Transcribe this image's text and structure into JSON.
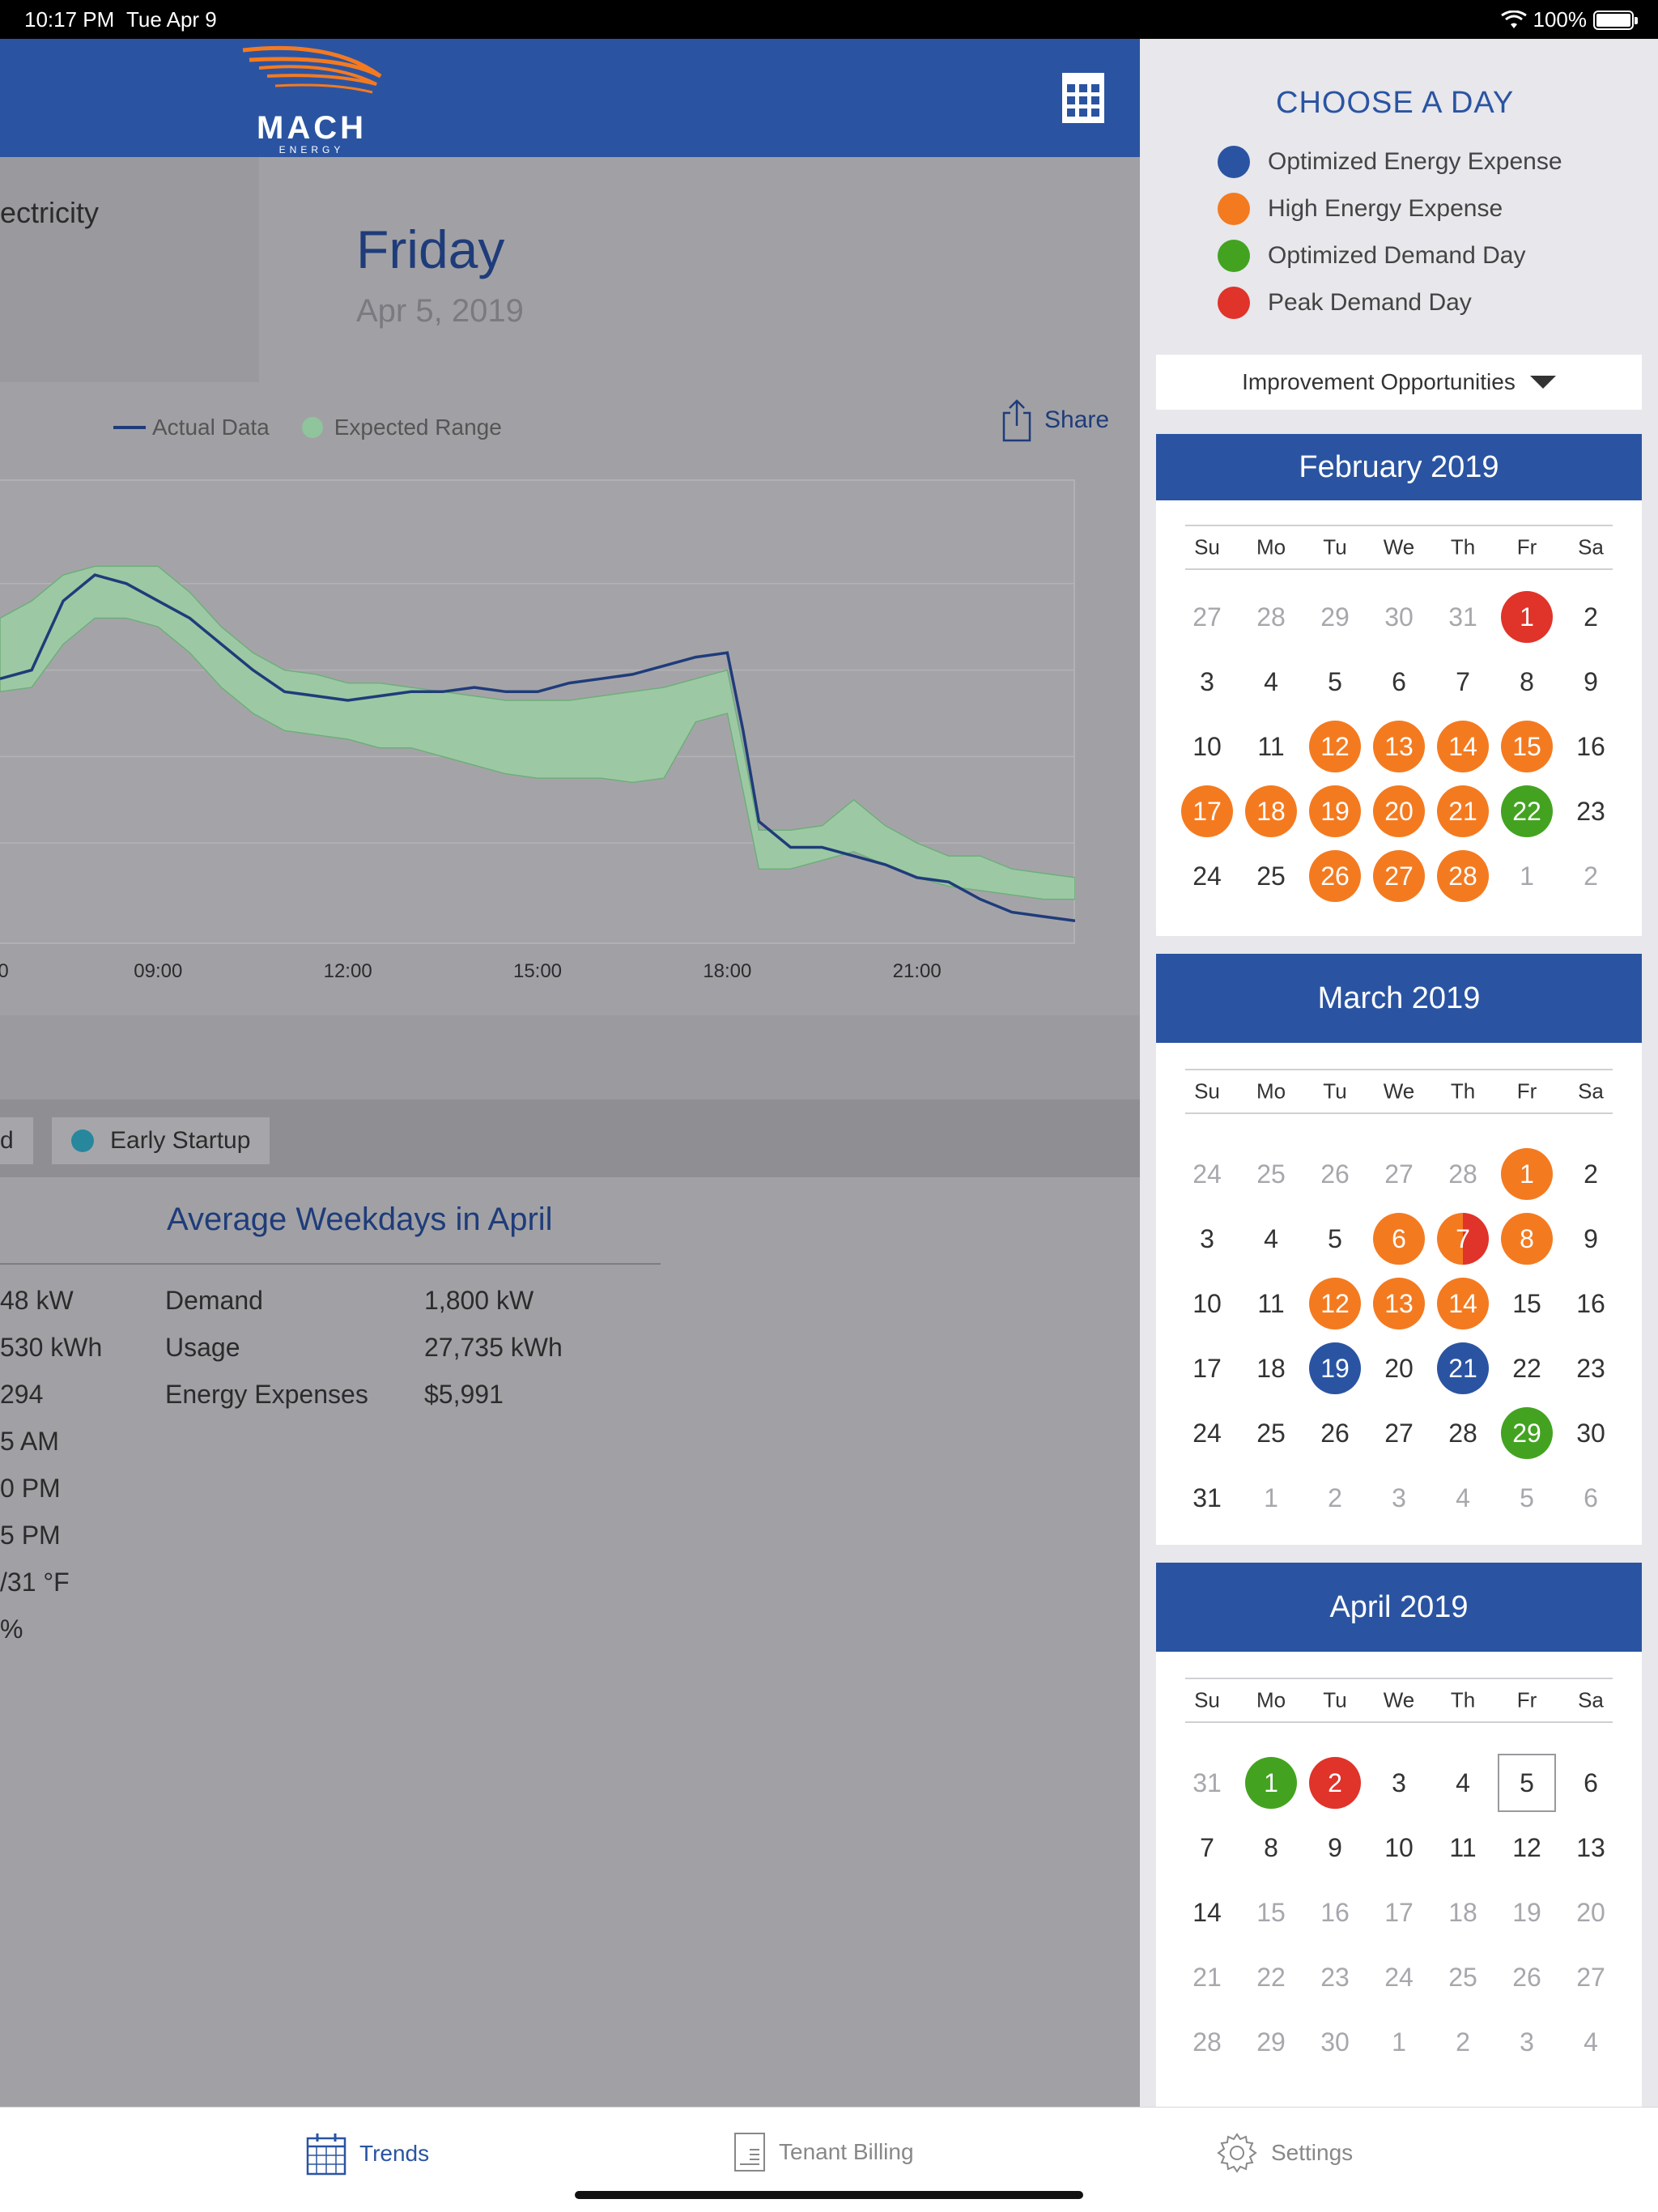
{
  "status": {
    "time": "10:17 PM",
    "date": "Tue Apr 9",
    "battery": "100%"
  },
  "header": {
    "logo_text": "MACH",
    "logo_sub": "ENERGY"
  },
  "main": {
    "tile_label": "ectricity",
    "day_name": "Friday",
    "day_date": "Apr 5, 2019",
    "legend_actual": "Actual Data",
    "legend_expected": "Expected Range",
    "share_label": "Share",
    "chip_partial": "d",
    "chip_early": "Early Startup",
    "avg_title": "Average Weekdays in April",
    "left_values": [
      "48 kW",
      "530 kWh",
      "294",
      "5 AM",
      "0 PM",
      "5 PM",
      "/31 °F",
      "%"
    ],
    "avg_labels": [
      "Demand",
      "Usage",
      "Energy Expenses"
    ],
    "avg_values": [
      "1,800 kW",
      "27,735 kWh",
      "$5,991"
    ]
  },
  "chart_data": {
    "type": "line",
    "x_ticks": [
      "0",
      "09:00",
      "12:00",
      "15:00",
      "18:00",
      "21:00"
    ],
    "series": [
      {
        "name": "Actual Data",
        "color": "#1f3c7a"
      },
      {
        "name": "Expected Range",
        "color": "#8fc49c"
      }
    ],
    "x": [
      6.5,
      7,
      7.5,
      8,
      8.5,
      9,
      9.5,
      10,
      10.5,
      11,
      11.5,
      12,
      12.5,
      13,
      13.5,
      14,
      14.5,
      15,
      15.5,
      16,
      16.5,
      17,
      17.5,
      18,
      18.25,
      18.5,
      19,
      19.5,
      20,
      20.5,
      21,
      21.5,
      22,
      22.5,
      23,
      23.5
    ],
    "actual": [
      0.58,
      0.6,
      0.76,
      0.82,
      0.8,
      0.76,
      0.72,
      0.66,
      0.6,
      0.55,
      0.54,
      0.53,
      0.54,
      0.55,
      0.55,
      0.56,
      0.55,
      0.55,
      0.57,
      0.58,
      0.59,
      0.61,
      0.63,
      0.64,
      0.46,
      0.25,
      0.19,
      0.19,
      0.17,
      0.15,
      0.12,
      0.11,
      0.07,
      0.04,
      0.03,
      0.02
    ],
    "expected_upper": [
      0.72,
      0.76,
      0.82,
      0.84,
      0.84,
      0.84,
      0.78,
      0.7,
      0.64,
      0.6,
      0.59,
      0.57,
      0.57,
      0.56,
      0.55,
      0.54,
      0.53,
      0.53,
      0.53,
      0.54,
      0.55,
      0.56,
      0.58,
      0.6,
      0.42,
      0.23,
      0.23,
      0.24,
      0.3,
      0.24,
      0.2,
      0.17,
      0.17,
      0.14,
      0.13,
      0.12
    ],
    "expected_lower": [
      0.55,
      0.56,
      0.66,
      0.72,
      0.72,
      0.7,
      0.64,
      0.56,
      0.5,
      0.46,
      0.45,
      0.44,
      0.42,
      0.42,
      0.4,
      0.38,
      0.36,
      0.35,
      0.35,
      0.35,
      0.34,
      0.35,
      0.48,
      0.5,
      0.32,
      0.14,
      0.14,
      0.16,
      0.18,
      0.15,
      0.12,
      0.1,
      0.09,
      0.08,
      0.07,
      0.07
    ]
  },
  "panel": {
    "choose_title": "CHOOSE A DAY",
    "keys": [
      {
        "label": "Optimized Energy Expense",
        "color": "#2a54a2"
      },
      {
        "label": "High Energy Expense",
        "color": "#f47a20"
      },
      {
        "label": "Optimized Demand Day",
        "color": "#43a321"
      },
      {
        "label": "Peak Demand Day",
        "color": "#e0332a"
      }
    ],
    "dropdown_label": "Improvement Opportunities",
    "dow": [
      "Su",
      "Mo",
      "Tu",
      "We",
      "Th",
      "Fr",
      "Sa"
    ],
    "months": [
      {
        "name": "February 2019",
        "weeks": [
          [
            {
              "d": "27",
              "m": 1
            },
            {
              "d": "28",
              "m": 1
            },
            {
              "d": "29",
              "m": 1
            },
            {
              "d": "30",
              "m": 1
            },
            {
              "d": "31",
              "m": 1
            },
            {
              "d": "1",
              "c": "red"
            },
            {
              "d": "2"
            }
          ],
          [
            {
              "d": "3"
            },
            {
              "d": "4"
            },
            {
              "d": "5"
            },
            {
              "d": "6"
            },
            {
              "d": "7"
            },
            {
              "d": "8"
            },
            {
              "d": "9"
            }
          ],
          [
            {
              "d": "10"
            },
            {
              "d": "11"
            },
            {
              "d": "12",
              "c": "orange"
            },
            {
              "d": "13",
              "c": "orange"
            },
            {
              "d": "14",
              "c": "orange"
            },
            {
              "d": "15",
              "c": "orange"
            },
            {
              "d": "16"
            }
          ],
          [
            {
              "d": "17",
              "c": "orange"
            },
            {
              "d": "18",
              "c": "orange"
            },
            {
              "d": "19",
              "c": "orange"
            },
            {
              "d": "20",
              "c": "orange"
            },
            {
              "d": "21",
              "c": "orange"
            },
            {
              "d": "22",
              "c": "green"
            },
            {
              "d": "23"
            }
          ],
          [
            {
              "d": "24"
            },
            {
              "d": "25"
            },
            {
              "d": "26",
              "c": "orange"
            },
            {
              "d": "27",
              "c": "orange"
            },
            {
              "d": "28",
              "c": "orange"
            },
            {
              "d": "1",
              "m": 1
            },
            {
              "d": "2",
              "m": 1
            }
          ]
        ]
      },
      {
        "name": "March 2019",
        "weeks": [
          [
            {
              "d": "24",
              "m": 1
            },
            {
              "d": "25",
              "m": 1
            },
            {
              "d": "26",
              "m": 1
            },
            {
              "d": "27",
              "m": 1
            },
            {
              "d": "28",
              "m": 1
            },
            {
              "d": "1",
              "c": "orange"
            },
            {
              "d": "2"
            }
          ],
          [
            {
              "d": "3"
            },
            {
              "d": "4"
            },
            {
              "d": "5"
            },
            {
              "d": "6",
              "c": "orange"
            },
            {
              "d": "7",
              "c": "split"
            },
            {
              "d": "8",
              "c": "orange"
            },
            {
              "d": "9"
            }
          ],
          [
            {
              "d": "10"
            },
            {
              "d": "11"
            },
            {
              "d": "12",
              "c": "orange"
            },
            {
              "d": "13",
              "c": "orange"
            },
            {
              "d": "14",
              "c": "orange"
            },
            {
              "d": "15"
            },
            {
              "d": "16"
            }
          ],
          [
            {
              "d": "17"
            },
            {
              "d": "18"
            },
            {
              "d": "19",
              "c": "blue"
            },
            {
              "d": "20"
            },
            {
              "d": "21",
              "c": "blue"
            },
            {
              "d": "22"
            },
            {
              "d": "23"
            }
          ],
          [
            {
              "d": "24"
            },
            {
              "d": "25"
            },
            {
              "d": "26"
            },
            {
              "d": "27"
            },
            {
              "d": "28"
            },
            {
              "d": "29",
              "c": "green"
            },
            {
              "d": "30"
            }
          ],
          [
            {
              "d": "31"
            },
            {
              "d": "1",
              "m": 1
            },
            {
              "d": "2",
              "m": 1
            },
            {
              "d": "3",
              "m": 1
            },
            {
              "d": "4",
              "m": 1
            },
            {
              "d": "5",
              "m": 1
            },
            {
              "d": "6",
              "m": 1
            }
          ]
        ]
      },
      {
        "name": "April 2019",
        "weeks": [
          [
            {
              "d": "31",
              "m": 1
            },
            {
              "d": "1",
              "c": "green"
            },
            {
              "d": "2",
              "c": "red"
            },
            {
              "d": "3"
            },
            {
              "d": "4"
            },
            {
              "d": "5",
              "sel": 1
            },
            {
              "d": "6"
            }
          ],
          [
            {
              "d": "7"
            },
            {
              "d": "8"
            },
            {
              "d": "9"
            },
            {
              "d": "10"
            },
            {
              "d": "11"
            },
            {
              "d": "12"
            },
            {
              "d": "13"
            }
          ],
          [
            {
              "d": "14"
            },
            {
              "d": "15",
              "m": 1
            },
            {
              "d": "16",
              "m": 1
            },
            {
              "d": "17",
              "m": 1
            },
            {
              "d": "18",
              "m": 1
            },
            {
              "d": "19",
              "m": 1
            },
            {
              "d": "20",
              "m": 1
            }
          ],
          [
            {
              "d": "21",
              "m": 1
            },
            {
              "d": "22",
              "m": 1
            },
            {
              "d": "23",
              "m": 1
            },
            {
              "d": "24",
              "m": 1
            },
            {
              "d": "25",
              "m": 1
            },
            {
              "d": "26",
              "m": 1
            },
            {
              "d": "27",
              "m": 1
            }
          ],
          [
            {
              "d": "28",
              "m": 1
            },
            {
              "d": "29",
              "m": 1
            },
            {
              "d": "30",
              "m": 1
            },
            {
              "d": "1",
              "m": 1
            },
            {
              "d": "2",
              "m": 1
            },
            {
              "d": "3",
              "m": 1
            },
            {
              "d": "4",
              "m": 1
            }
          ]
        ]
      }
    ]
  },
  "tabs": [
    {
      "label": "Trends",
      "icon": "calendar-icon",
      "active": true
    },
    {
      "label": "Tenant Billing",
      "icon": "document-icon",
      "active": false
    },
    {
      "label": "Settings",
      "icon": "gear-icon",
      "active": false
    }
  ],
  "colors": {
    "brand": "#2a54a2",
    "orange": "#f47a20",
    "green": "#43a321",
    "red": "#e0332a",
    "blue": "#2a54a2"
  }
}
